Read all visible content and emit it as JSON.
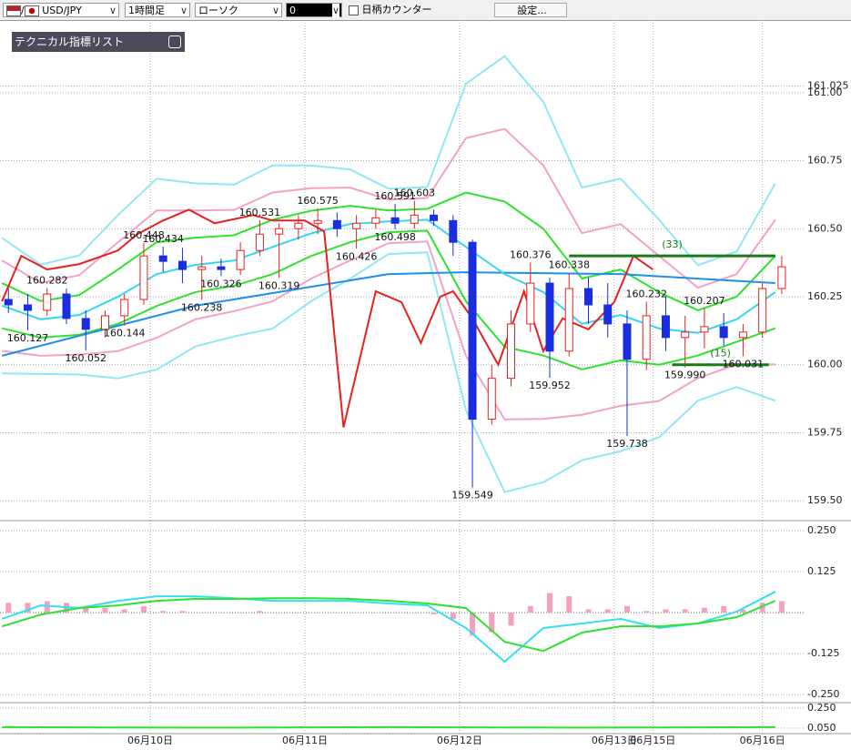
{
  "toolbar": {
    "symbol": "USD/JPY",
    "timeframe": "1時間足",
    "chart_style": "ローソク",
    "count": "0",
    "counter_label": "日柄カウンター",
    "settings": "設定..."
  },
  "technical_list": "テクニカル指標リスト",
  "chart_data": [
    {
      "type": "candlestick",
      "up_color": "#e8201e",
      "down_color": "#1a2ee0",
      "grid": true,
      "xlim": [
        -0.31,
        122.85
      ],
      "xticks": [
        {
          "value": 23,
          "label": "06月10日"
        },
        {
          "value": 47,
          "label": "06月11日"
        },
        {
          "value": 71,
          "label": "06月12日"
        },
        {
          "value": 95,
          "label": "06月13日"
        },
        {
          "value": 101,
          "label": "06月15日"
        },
        {
          "value": 118,
          "label": "06月16日"
        }
      ],
      "ylim": [
        159.427,
        161.267
      ],
      "yticks": [
        {
          "value": 159.5,
          "label": "159.50"
        },
        159.75,
        {
          "value": 160,
          "label": "160.00"
        },
        160.25,
        {
          "value": 160.5,
          "label": "160.50"
        },
        160.75,
        {
          "value": 161,
          "label": "161.00"
        },
        161.025
      ],
      "x": [
        1,
        4,
        7,
        10,
        13,
        16,
        19,
        22,
        25,
        28,
        31,
        34,
        37,
        40,
        43,
        46,
        49,
        52,
        55,
        58,
        61,
        64,
        67,
        70,
        73,
        76,
        79,
        82,
        85,
        88,
        91,
        94,
        97,
        100,
        103,
        106,
        109,
        112,
        115,
        118,
        121
      ],
      "open": [
        160.24,
        160.22,
        160.2,
        160.26,
        160.17,
        160.13,
        160.18,
        160.24,
        160.4,
        160.38,
        160.35,
        160.36,
        160.35,
        160.42,
        160.48,
        160.5,
        160.52,
        160.53,
        160.5,
        160.52,
        160.54,
        160.52,
        160.55,
        160.53,
        160.45,
        159.8,
        159.95,
        160.15,
        160.3,
        160.05,
        160.28,
        160.22,
        160.15,
        160.02,
        160.18,
        160.1,
        160.12,
        160.14,
        160.1,
        160.12,
        160.28
      ],
      "high": [
        160.28,
        160.26,
        160.282,
        160.28,
        160.2,
        160.2,
        160.26,
        160.448,
        160.434,
        160.43,
        160.4,
        160.39,
        160.45,
        160.531,
        160.52,
        160.55,
        160.575,
        160.56,
        160.55,
        160.57,
        160.591,
        160.603,
        160.57,
        160.55,
        160.46,
        160,
        160.2,
        160.376,
        160.32,
        160.338,
        160.32,
        160.3,
        160.2,
        160.232,
        160.25,
        160.18,
        160.207,
        160.19,
        160.15,
        160.3,
        160.4
      ],
      "low": [
        160.19,
        160.127,
        160.18,
        160.15,
        160.052,
        160.1,
        160.144,
        160.22,
        160.34,
        160.3,
        160.238,
        160.326,
        160.33,
        160.4,
        160.319,
        160.46,
        160.48,
        160.47,
        160.426,
        160.5,
        160.498,
        160.5,
        160.51,
        160.4,
        159.549,
        159.78,
        159.92,
        160.12,
        159.952,
        160.03,
        160.15,
        160.1,
        159.738,
        159.98,
        160.05,
        159.99,
        160.06,
        160.07,
        160.031,
        160.1,
        160.26
      ],
      "close": [
        160.22,
        160.2,
        160.26,
        160.17,
        160.13,
        160.18,
        160.24,
        160.4,
        160.38,
        160.35,
        160.36,
        160.35,
        160.42,
        160.48,
        160.5,
        160.52,
        160.53,
        160.5,
        160.52,
        160.54,
        160.52,
        160.55,
        160.53,
        160.45,
        159.8,
        159.95,
        160.15,
        160.3,
        160.05,
        160.28,
        160.22,
        160.15,
        160.02,
        160.18,
        160.1,
        160.12,
        160.14,
        160.1,
        160.12,
        160.28,
        160.36
      ],
      "lines": [
        {
          "color": "#8fe8f4",
          "x": [
            0,
            6,
            12,
            18,
            24,
            30,
            36,
            42,
            48,
            54,
            60,
            66,
            72,
            78,
            84,
            90,
            96,
            102,
            108,
            114,
            120
          ],
          "values": [
            160.466,
            160.368,
            160.402,
            160.55,
            160.684,
            160.667,
            160.662,
            160.733,
            160.732,
            160.718,
            160.647,
            160.653,
            161.033,
            161.134,
            160.966,
            160.651,
            160.684,
            160.532,
            160.366,
            160.416,
            160.666
          ]
        },
        {
          "color": "#8fe8f4",
          "x": [
            0,
            6,
            12,
            18,
            24,
            30,
            36,
            42,
            48,
            54,
            60,
            66,
            72,
            78,
            84,
            90,
            96,
            102,
            108,
            114,
            120
          ],
          "values": [
            159.968,
            159.966,
            159.964,
            159.95,
            159.982,
            160.067,
            160.104,
            160.133,
            160.234,
            160.316,
            160.407,
            160.413,
            159.833,
            159.532,
            159.568,
            159.649,
            159.682,
            159.734,
            159.868,
            159.918,
            159.868
          ]
        },
        {
          "color": "#f4a0c8",
          "x": [
            0,
            6,
            12,
            18,
            24,
            30,
            36,
            42,
            48,
            54,
            60,
            66,
            72,
            78,
            84,
            90,
            96,
            102,
            108,
            114,
            120
          ],
          "values": [
            160.383,
            160.301,
            160.329,
            160.45,
            160.567,
            160.567,
            160.569,
            160.633,
            160.649,
            160.651,
            160.607,
            160.613,
            160.833,
            160.867,
            160.733,
            160.484,
            160.517,
            160.399,
            160.283,
            160.333,
            160.533
          ]
        },
        {
          "color": "#f4a0c8",
          "x": [
            0,
            6,
            12,
            18,
            24,
            30,
            36,
            42,
            48,
            54,
            60,
            66,
            72,
            78,
            84,
            90,
            96,
            102,
            108,
            114,
            120
          ],
          "values": [
            160.051,
            160.033,
            160.037,
            160.05,
            160.099,
            160.167,
            160.197,
            160.233,
            160.317,
            160.383,
            160.447,
            160.453,
            160.033,
            159.799,
            159.801,
            159.816,
            159.849,
            159.867,
            159.951,
            160.001,
            160.001
          ]
        },
        {
          "color": "#2ee22e",
          "x": [
            0,
            6,
            12,
            18,
            24,
            30,
            36,
            42,
            48,
            54,
            60,
            66,
            72,
            78,
            84,
            90,
            96,
            102,
            108,
            114,
            120
          ],
          "values": [
            160.3,
            160.234,
            160.256,
            160.35,
            160.45,
            160.467,
            160.476,
            160.533,
            160.566,
            160.584,
            160.567,
            160.573,
            160.633,
            160.6,
            160.5,
            160.317,
            160.35,
            160.266,
            160.2,
            160.25,
            160.4
          ]
        },
        {
          "color": "#2ee22e",
          "x": [
            0,
            6,
            12,
            18,
            24,
            30,
            36,
            42,
            48,
            54,
            60,
            66,
            72,
            78,
            84,
            90,
            96,
            102,
            108,
            114,
            120
          ],
          "values": [
            160.134,
            160.1,
            160.11,
            160.15,
            160.216,
            160.267,
            160.29,
            160.333,
            160.4,
            160.45,
            160.487,
            160.493,
            160.233,
            160.066,
            160.034,
            159.983,
            160.016,
            160,
            160.034,
            160.084,
            160.134
          ]
        },
        {
          "color": "#1e90e8",
          "x": [
            0,
            30,
            60,
            72,
            96,
            120
          ],
          "values": [
            160.033,
            160.217,
            160.333,
            160.34,
            160.333,
            160.3
          ]
        },
        {
          "color": "#33d8ee",
          "x": [
            0,
            6,
            12,
            18,
            24,
            30,
            36,
            42,
            48,
            54,
            60,
            66,
            72,
            78,
            84,
            90,
            96,
            102,
            108,
            114,
            120
          ],
          "values": [
            160.217,
            160.167,
            160.183,
            160.25,
            160.333,
            160.367,
            160.383,
            160.433,
            160.483,
            160.517,
            160.527,
            160.533,
            160.433,
            160.333,
            160.267,
            160.15,
            160.183,
            160.133,
            160.117,
            160.167,
            160.267
          ]
        },
        {
          "color": "#e8201e",
          "x": [
            0,
            3,
            7,
            12,
            18,
            21,
            25,
            29,
            33,
            39,
            42,
            47,
            50,
            53,
            55,
            58,
            62,
            65,
            68,
            70,
            73,
            77,
            81,
            84,
            87,
            91,
            95,
            98,
            101
          ],
          "values": [
            160.233,
            160.4,
            160.35,
            160.37,
            160.42,
            160.48,
            160.53,
            160.57,
            160.52,
            160.55,
            160.53,
            160.53,
            160.49,
            159.77,
            159.97,
            160.27,
            160.23,
            160.08,
            160.25,
            160.27,
            160.17,
            160,
            160.27,
            160.05,
            160.17,
            160.13,
            160.23,
            160.4,
            160.35
          ]
        }
      ],
      "levels": [
        {
          "color": "#1a7a1a",
          "x": [
            88,
            120
          ],
          "value": 160.4,
          "label": "(33)"
        },
        {
          "color": "#1a7a1a",
          "x": [
            104,
            119
          ],
          "value": 160,
          "label": "(15)"
        }
      ],
      "annotations": [
        {
          "x": 4,
          "value": 160.127
        },
        {
          "x": 7,
          "value": 160.282
        },
        {
          "x": 13,
          "value": 160.052
        },
        {
          "x": 19,
          "value": 160.144
        },
        {
          "x": 22,
          "value": 160.448
        },
        {
          "x": 25,
          "value": 160.434
        },
        {
          "x": 31,
          "value": 160.238
        },
        {
          "x": 34,
          "value": 160.326
        },
        {
          "x": 40,
          "value": 160.531
        },
        {
          "x": 43,
          "value": 160.319
        },
        {
          "x": 49,
          "value": 160.575
        },
        {
          "x": 55,
          "value": 160.426
        },
        {
          "x": 61,
          "value": 160.591
        },
        {
          "x": 61,
          "value": 160.498
        },
        {
          "x": 64,
          "value": 160.603
        },
        {
          "x": 73,
          "value": 159.549
        },
        {
          "x": 82,
          "value": 160.376
        },
        {
          "x": 85,
          "value": 159.952
        },
        {
          "x": 88,
          "value": 160.338
        },
        {
          "x": 97,
          "value": 159.738
        },
        {
          "x": 100,
          "value": 160.232
        },
        {
          "x": 106,
          "value": 159.99,
          "label": "159.990"
        },
        {
          "x": 109,
          "value": 160.207
        },
        {
          "x": 115,
          "value": 160.031
        }
      ]
    },
    {
      "type": "macd",
      "xlim": [
        -0.31,
        122.85
      ],
      "ylim": [
        -0.275,
        0.281
      ],
      "yticks": [
        {
          "value": -0.25,
          "label": "-0.250"
        },
        -0.125,
        0.125,
        {
          "value": 0.25,
          "label": "0.250"
        }
      ],
      "histogram": {
        "color": "#f4a0c0",
        "x": [
          1,
          4,
          7,
          10,
          13,
          16,
          19,
          22,
          25,
          28,
          31,
          34,
          37,
          40,
          43,
          46,
          49,
          52,
          55,
          58,
          61,
          64,
          67,
          70,
          73,
          76,
          79,
          82,
          85,
          88,
          91,
          94,
          97,
          100,
          103,
          106,
          109,
          112,
          115,
          118,
          121
        ],
        "values": [
          0.03,
          0.03,
          0.035,
          0.03,
          0.02,
          0.015,
          0.01,
          0.02,
          0.005,
          0.005,
          0,
          0,
          0,
          0.005,
          0,
          0,
          0,
          0,
          0,
          0,
          0,
          0,
          -0.005,
          -0.02,
          -0.07,
          -0.06,
          -0.04,
          0.02,
          0.06,
          0.05,
          0.01,
          0.01,
          0.02,
          0.005,
          0.01,
          0.01,
          0.015,
          0.02,
          0.01,
          0.03,
          0.035
        ]
      },
      "lines": [
        {
          "color": "#33e0f0",
          "x": [
            0,
            6,
            12,
            18,
            24,
            30,
            36,
            42,
            48,
            54,
            60,
            66,
            72,
            78,
            84,
            90,
            96,
            102,
            108,
            114,
            120
          ],
          "values": [
            -0.019,
            0.022,
            0.014,
            0.036,
            0.05,
            0.05,
            0.044,
            0.036,
            0.036,
            0.036,
            0.028,
            0.022,
            -0.047,
            -0.15,
            -0.047,
            -0.033,
            -0.019,
            -0.047,
            -0.033,
            0.003,
            0.064
          ]
        },
        {
          "color": "#2ee22e",
          "x": [
            0,
            6,
            12,
            18,
            24,
            30,
            36,
            42,
            48,
            54,
            60,
            66,
            72,
            78,
            84,
            90,
            96,
            102,
            108,
            114,
            120
          ],
          "values": [
            -0.042,
            -0.006,
            0.014,
            0.022,
            0.036,
            0.042,
            0.042,
            0.044,
            0.044,
            0.042,
            0.036,
            0.028,
            0.014,
            -0.089,
            -0.117,
            -0.061,
            -0.042,
            -0.042,
            -0.033,
            -0.014,
            0.036
          ]
        }
      ]
    },
    {
      "type": "line",
      "xlim": [
        -0.31,
        122.85
      ],
      "ylim": [
        -0.005,
        0.305
      ],
      "yticks": [
        {
          "value": 0.05,
          "label": "0.050"
        },
        {
          "value": 0.25,
          "label": "0.250"
        }
      ],
      "lines": [
        {
          "color": "#2ee22e",
          "x": [
            0,
            30,
            60,
            90,
            120
          ],
          "values": [
            0.06,
            0.055,
            0.06,
            0.055,
            0.06
          ]
        }
      ]
    }
  ]
}
